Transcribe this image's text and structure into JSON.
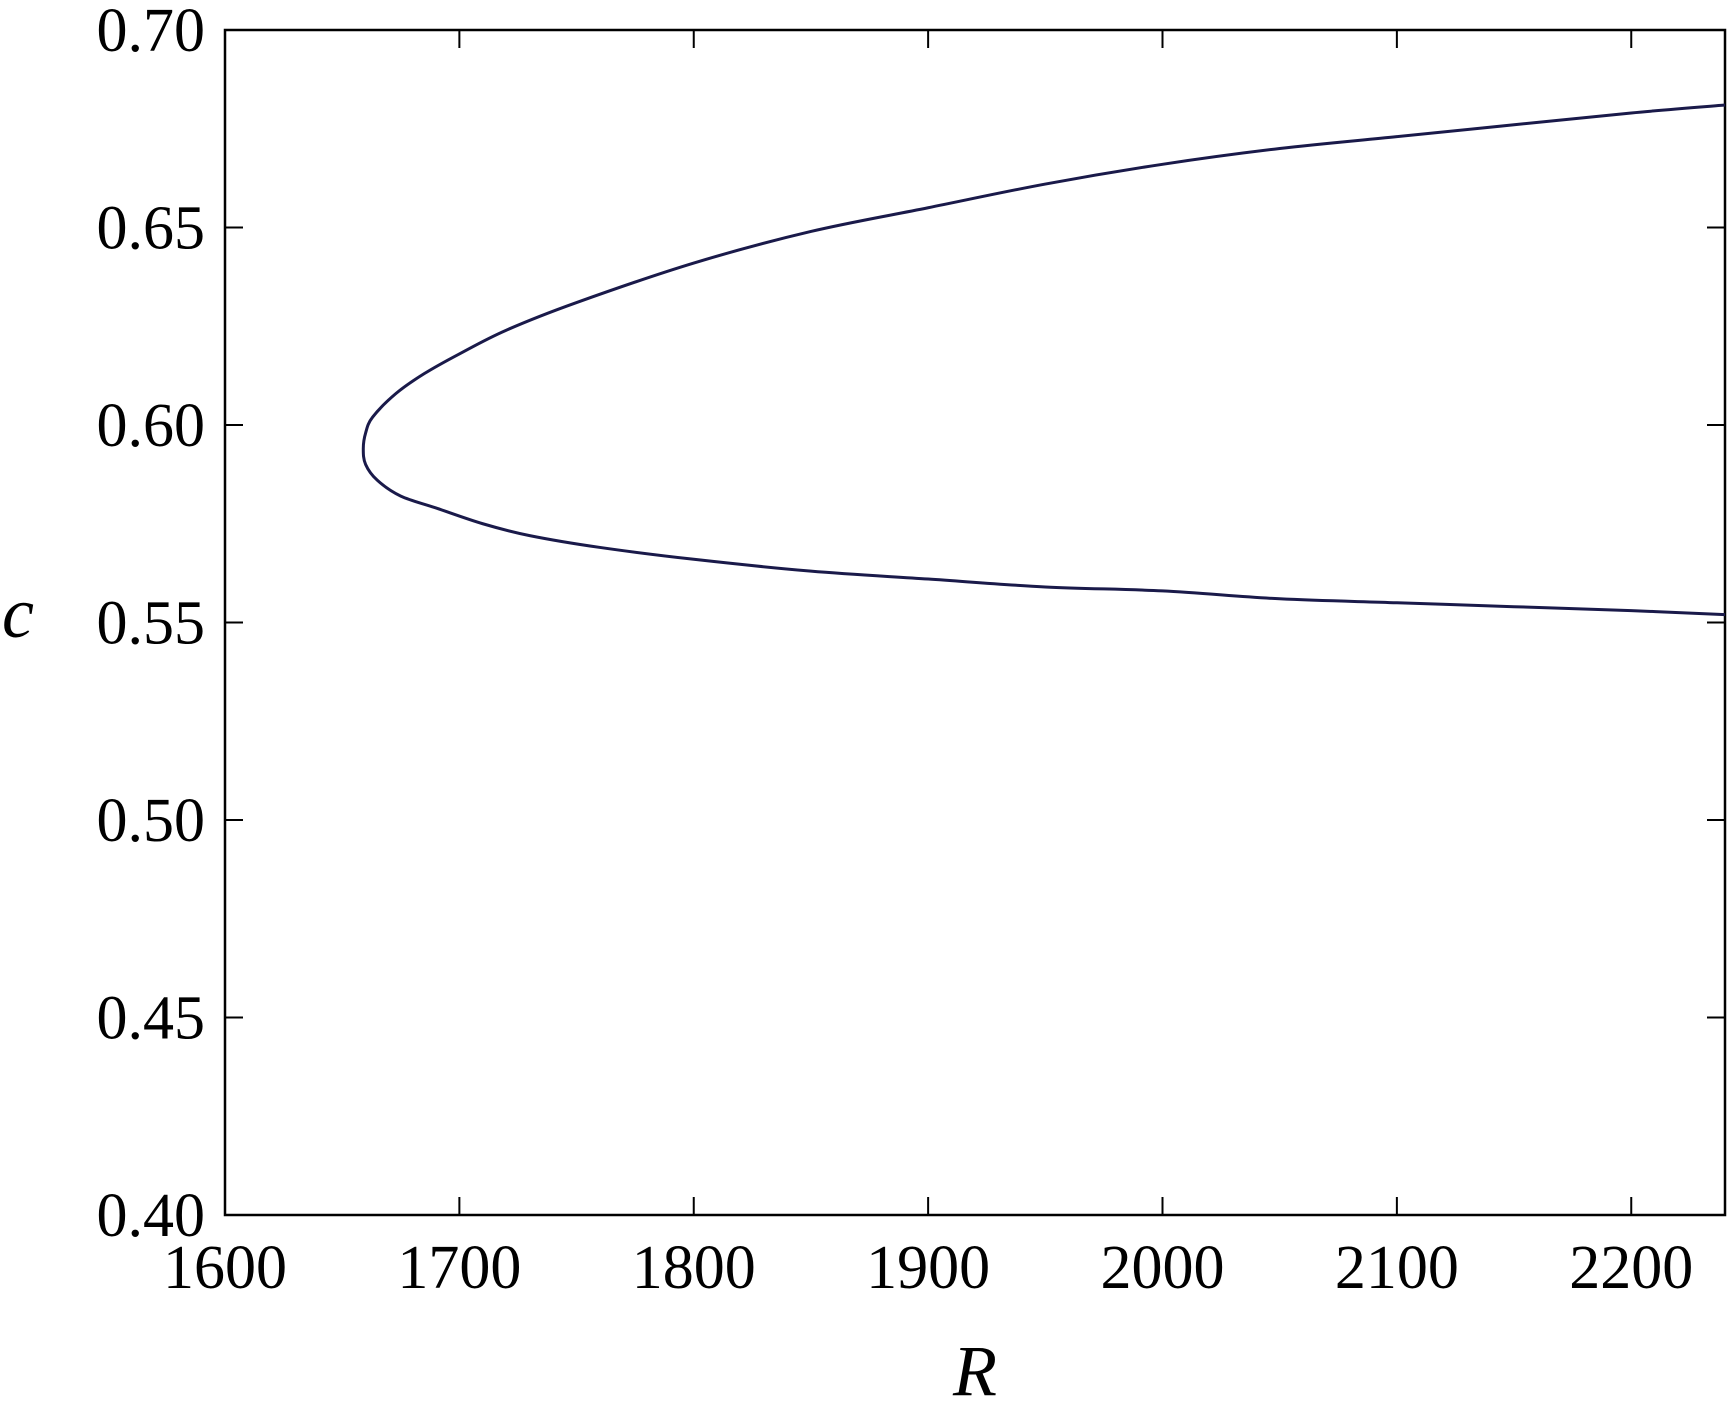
{
  "chart_data": {
    "type": "line",
    "title": "",
    "xlabel": "R",
    "ylabel": "c",
    "xlim": [
      1600,
      2240
    ],
    "ylim": [
      0.4,
      0.7
    ],
    "xticks": [
      1600,
      1700,
      1800,
      1900,
      2000,
      2100,
      2200
    ],
    "xtick_labels": [
      "1600",
      "1700",
      "1800",
      "1900",
      "2000",
      "2100",
      "2200"
    ],
    "yticks": [
      0.4,
      0.45,
      0.5,
      0.55,
      0.6,
      0.65,
      0.7
    ],
    "ytick_labels": [
      "0.40",
      "0.45",
      "0.50",
      "0.55",
      "0.60",
      "0.65",
      "0.70"
    ],
    "grid": false,
    "legend": "none",
    "line_color": "#1a1a4a",
    "series": [
      {
        "x": [
          2240,
          2200,
          2150,
          2100,
          2050,
          2000,
          1950,
          1900,
          1850,
          1800,
          1750,
          1720,
          1700,
          1685,
          1673,
          1663,
          1660,
          1659,
          1660,
          1665,
          1675,
          1690,
          1710,
          1730,
          1760,
          1800,
          1850,
          1900,
          1950,
          2000,
          2050,
          2100,
          2150,
          2200,
          2240
        ],
        "y": [
          0.681,
          0.679,
          0.676,
          0.673,
          0.67,
          0.666,
          0.661,
          0.655,
          0.649,
          0.641,
          0.631,
          0.624,
          0.618,
          0.613,
          0.608,
          0.602,
          0.598,
          0.594,
          0.59,
          0.586,
          0.582,
          0.579,
          0.575,
          0.572,
          0.569,
          0.566,
          0.563,
          0.561,
          0.559,
          0.558,
          0.556,
          0.555,
          0.554,
          0.553,
          0.552
        ]
      }
    ]
  }
}
